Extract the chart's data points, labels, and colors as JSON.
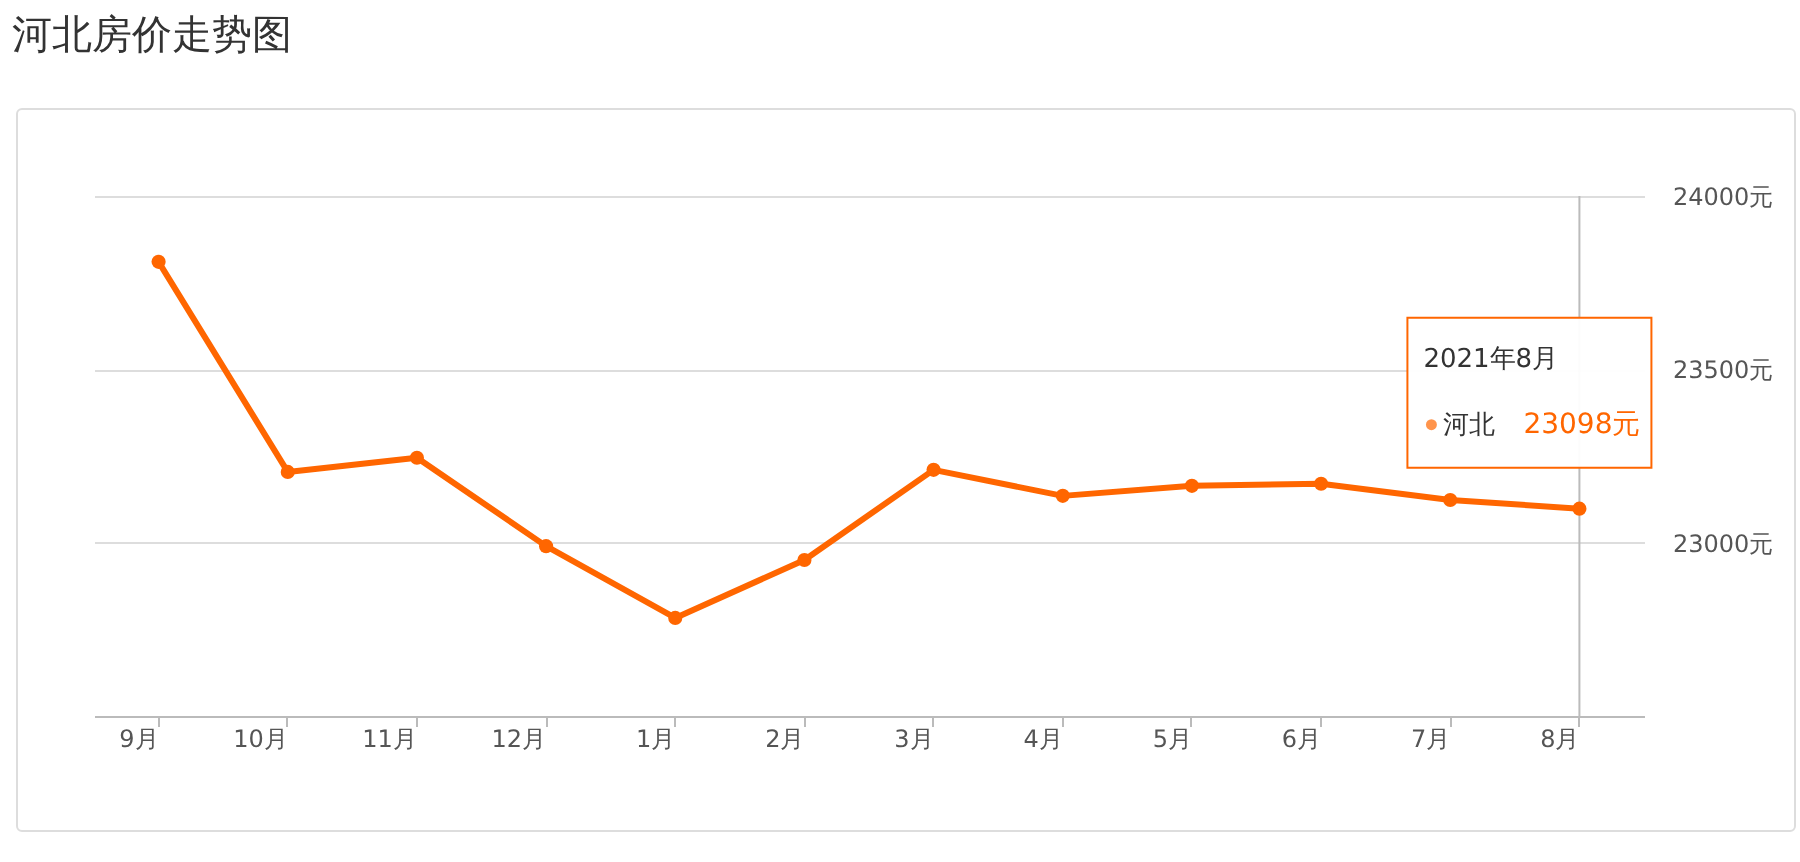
{
  "chart_data": {
    "type": "line",
    "title": "河北房价走势图",
    "categories": [
      "9月",
      "10月",
      "11月",
      "12月",
      "1月",
      "2月",
      "3月",
      "4月",
      "5月",
      "6月",
      "7月",
      "8月"
    ],
    "series": [
      {
        "name": "河北",
        "color": "#ff6600",
        "values": [
          23810,
          23204,
          23245,
          22990,
          22783,
          22950,
          23210,
          23135,
          23164,
          23170,
          23123,
          23098
        ],
        "value_labels": [
          null,
          null,
          null,
          null,
          null,
          null,
          null,
          null,
          null,
          null,
          null,
          "23098元"
        ]
      }
    ],
    "ylim": [
      22500,
      24000
    ],
    "yticks": [
      {
        "value": 22500,
        "label": null
      },
      {
        "value": 23000,
        "label": "23000元"
      },
      {
        "value": 23500,
        "label": "23500元"
      },
      {
        "value": 24000,
        "label": "24000元"
      }
    ],
    "grid": "y",
    "legend": "top right",
    "marker": "circle",
    "line_style": "solid",
    "ref_lines": [
      {
        "axis": "x",
        "value": "8月",
        "color": "#bbbbbb"
      }
    ],
    "annotations": [
      "2021年8月"
    ]
  }
}
